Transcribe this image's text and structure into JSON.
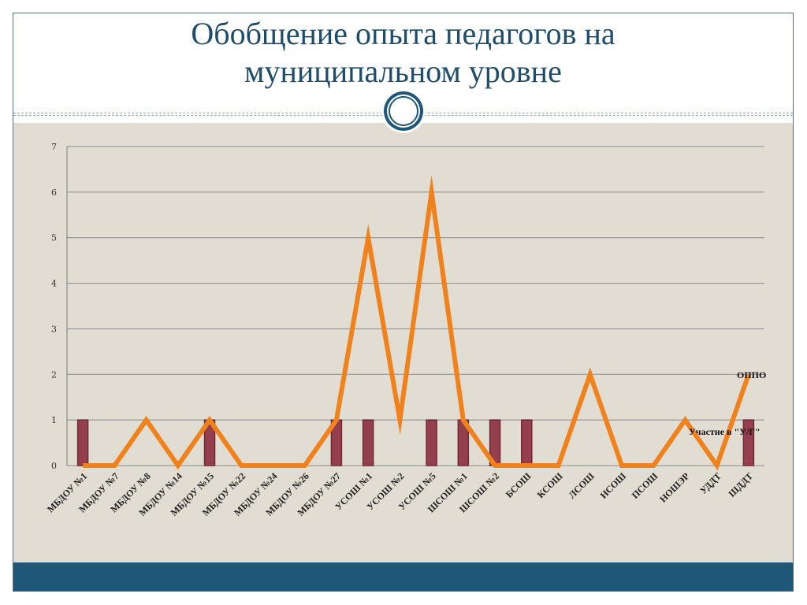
{
  "slide": {
    "title_line1": "Обобщение опыта педагогов на",
    "title_line2": "муниципальном уровне"
  },
  "colors": {
    "title": "#1e4d6b",
    "content_bg": "#e2ddd2",
    "footer": "#1f5778",
    "bar_fill": "#953e4d",
    "bar_stroke": "#6e2a35",
    "line": "#f0821e",
    "grid": "#8a8a8a"
  },
  "chart_data": {
    "type": "bar",
    "title": "",
    "xlabel": "",
    "ylabel": "",
    "ylim": [
      0,
      7
    ],
    "yticks": [
      "0",
      "1",
      "2",
      "3",
      "4",
      "5",
      "6",
      "7"
    ],
    "grid": true,
    "categories": [
      "МБДОУ №1",
      "МБДОУ №7",
      "МБДОУ №8",
      "МБДОУ №14",
      "МБДОУ №15",
      "МБДОУ №22",
      "МБДОУ №24",
      "МБДОУ №26",
      "МБДОУ №27",
      "УСОШ №1",
      "УСОШ №2",
      "УСОШ №5",
      "ШСОШ №1",
      "ШСОШ №2",
      "БСОШ",
      "КСОШ",
      "ЛСОШ",
      "НСОШ",
      "ПСОШ",
      "НОШЭР",
      "УДДТ",
      "ШДДТ"
    ],
    "series": [
      {
        "name": "Участие в \"У/Г\"",
        "type": "bar",
        "values": [
          1,
          0,
          0,
          0,
          1,
          0,
          0,
          0,
          1,
          1,
          0,
          1,
          1,
          1,
          1,
          0,
          0,
          0,
          0,
          0,
          0,
          1
        ]
      },
      {
        "name": "ОППО",
        "type": "line",
        "values": [
          0,
          0,
          1,
          0,
          1,
          0,
          0,
          0,
          1,
          5,
          1,
          6,
          1,
          0,
          0,
          0,
          2,
          0,
          0,
          1,
          0,
          2
        ]
      }
    ]
  }
}
